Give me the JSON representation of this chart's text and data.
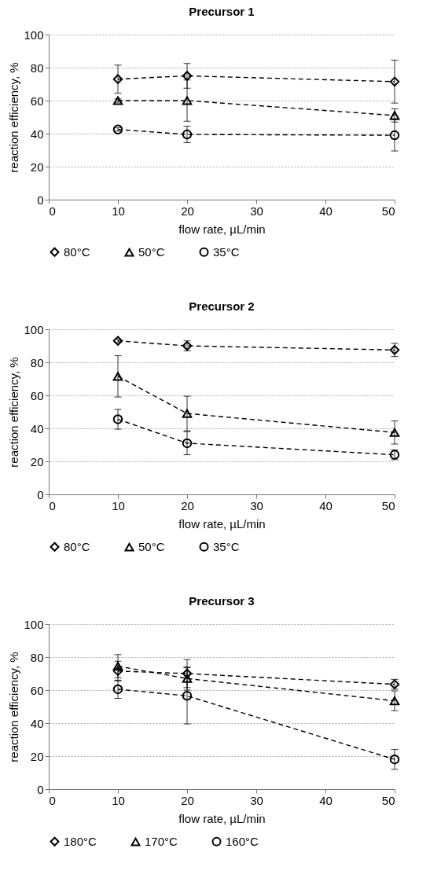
{
  "chart_data": [
    {
      "type": "line",
      "title": "Precursor 1",
      "xlabel": "flow rate, µL/min",
      "ylabel": "reaction efficiency, %",
      "x": [
        10,
        20,
        50
      ],
      "xlim": [
        0,
        50
      ],
      "xticks": [
        0,
        10,
        20,
        30,
        40,
        50
      ],
      "ylim": [
        0,
        100
      ],
      "yticks": [
        0,
        20,
        40,
        60,
        80,
        100
      ],
      "grid": "y",
      "legend": "bottom",
      "line_style": "dashed",
      "series": [
        {
          "name": "80°C",
          "color": "#000000",
          "marker": "diamond",
          "values": [
            73,
            75,
            71.5
          ],
          "errors": [
            8.5,
            7.5,
            13
          ]
        },
        {
          "name": "50°C",
          "color": "#000000",
          "marker": "triangle",
          "values": [
            60,
            60,
            51
          ],
          "errors": [
            1,
            12.5,
            4
          ]
        },
        {
          "name": "35°C",
          "color": "#000000",
          "marker": "circle",
          "values": [
            42.5,
            39.5,
            39
          ],
          "errors": [
            1,
            5,
            9.5
          ]
        }
      ]
    },
    {
      "type": "line",
      "title": "Precursor 2",
      "xlabel": "flow rate, µL/min",
      "ylabel": "reaction efficiency, %",
      "x": [
        10,
        20,
        50
      ],
      "xlim": [
        0,
        50
      ],
      "xticks": [
        0,
        10,
        20,
        30,
        40,
        50
      ],
      "ylim": [
        0,
        100
      ],
      "yticks": [
        0,
        20,
        40,
        60,
        80,
        100
      ],
      "grid": "y",
      "legend": "bottom",
      "line_style": "dashed",
      "series": [
        {
          "name": "80°C",
          "color": "#000000",
          "marker": "diamond",
          "values": [
            93,
            90,
            87.5
          ],
          "errors": [
            1,
            3,
            4
          ]
        },
        {
          "name": "50°C",
          "color": "#000000",
          "marker": "triangle",
          "values": [
            71.5,
            49,
            37.5
          ],
          "errors": [
            12.5,
            10.5,
            7
          ]
        },
        {
          "name": "35°C",
          "color": "#000000",
          "marker": "circle",
          "values": [
            45.5,
            31,
            24
          ],
          "errors": [
            6,
            7,
            3
          ]
        }
      ]
    },
    {
      "type": "line",
      "title": "Precursor 3",
      "xlabel": "flow rate, µL/min",
      "ylabel": "reaction efficiency, %",
      "x": [
        10,
        20,
        50
      ],
      "xlim": [
        0,
        50
      ],
      "xticks": [
        0,
        10,
        20,
        30,
        40,
        50
      ],
      "ylim": [
        0,
        100
      ],
      "yticks": [
        0,
        20,
        40,
        60,
        80,
        100
      ],
      "grid": "y",
      "legend": "bottom",
      "line_style": "dashed",
      "series": [
        {
          "name": "180°C",
          "color": "#000000",
          "marker": "diamond",
          "values": [
            71.5,
            70,
            63.5
          ],
          "errors": [
            6,
            8.5,
            3
          ]
        },
        {
          "name": "170°C",
          "color": "#000000",
          "marker": "triangle",
          "values": [
            74.5,
            67,
            53.5
          ],
          "errors": [
            7,
            7,
            6
          ]
        },
        {
          "name": "160°C",
          "color": "#000000",
          "marker": "circle",
          "values": [
            60.5,
            56.5,
            18
          ],
          "errors": [
            5.5,
            17,
            6
          ]
        }
      ]
    }
  ]
}
